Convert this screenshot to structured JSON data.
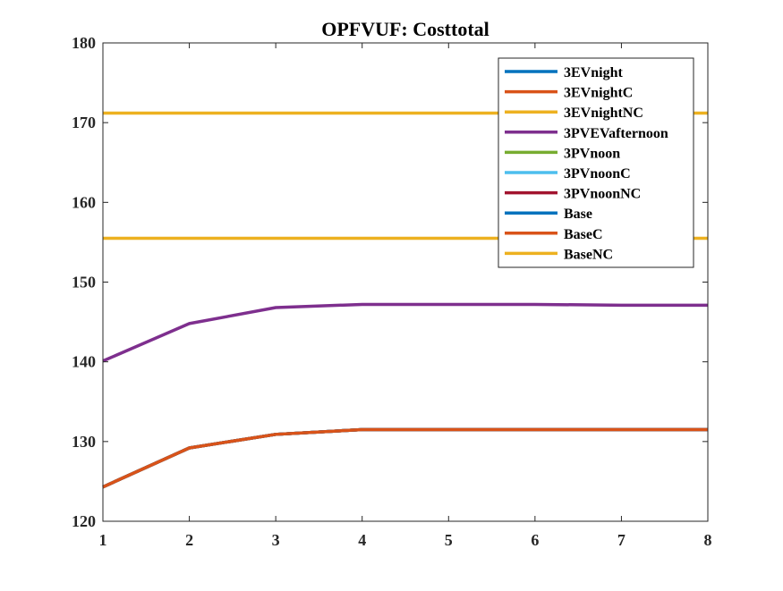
{
  "chart_data": {
    "type": "line",
    "title": "OPFVUF: Costtotal",
    "xlabel": "",
    "ylabel": "",
    "x": [
      1,
      2,
      3,
      4,
      5,
      6,
      7,
      8
    ],
    "xlim": [
      1,
      8
    ],
    "ylim": [
      120,
      180
    ],
    "xticks": [
      1,
      2,
      3,
      4,
      5,
      6,
      7,
      8
    ],
    "yticks": [
      120,
      130,
      140,
      150,
      160,
      170,
      180
    ],
    "grid": false,
    "legend_position": "top-right",
    "series": [
      {
        "name": "3EVnight",
        "color": "#0072BD",
        "values": [
          124.3,
          129.2,
          130.9,
          131.5,
          131.5,
          131.5,
          131.5,
          131.5
        ]
      },
      {
        "name": "3EVnightC",
        "color": "#D95319",
        "values": [
          124.3,
          129.2,
          130.9,
          131.5,
          131.5,
          131.5,
          131.5,
          131.5
        ]
      },
      {
        "name": "3EVnightNC",
        "color": "#EDB120",
        "values": [
          171.2,
          171.2,
          171.2,
          171.2,
          171.2,
          171.2,
          171.2,
          171.2
        ]
      },
      {
        "name": "3PVEVafternoon",
        "color": "#7E2F8E",
        "values": [
          140.1,
          144.8,
          146.8,
          147.2,
          147.2,
          147.2,
          147.1,
          147.1
        ]
      },
      {
        "name": "3PVnoon",
        "color": "#77AC30",
        "values": [
          124.3,
          129.2,
          130.9,
          131.5,
          131.5,
          131.5,
          131.5,
          131.5
        ]
      },
      {
        "name": "3PVnoonC",
        "color": "#4DBEEE",
        "values": [
          124.3,
          129.2,
          130.9,
          131.5,
          131.5,
          131.5,
          131.5,
          131.5
        ]
      },
      {
        "name": "3PVnoonNC",
        "color": "#A2142F",
        "values": [
          124.3,
          129.2,
          130.9,
          131.5,
          131.5,
          131.5,
          131.5,
          131.5
        ]
      },
      {
        "name": "Base",
        "color": "#0072BD",
        "values": [
          124.3,
          129.2,
          130.9,
          131.5,
          131.5,
          131.5,
          131.5,
          131.5
        ]
      },
      {
        "name": "BaseC",
        "color": "#D95319",
        "values": [
          124.3,
          129.2,
          130.9,
          131.5,
          131.5,
          131.5,
          131.5,
          131.5
        ]
      },
      {
        "name": "BaseNC",
        "color": "#EDB120",
        "values": [
          155.5,
          155.5,
          155.5,
          155.5,
          155.5,
          155.5,
          155.5,
          155.5
        ]
      }
    ]
  }
}
